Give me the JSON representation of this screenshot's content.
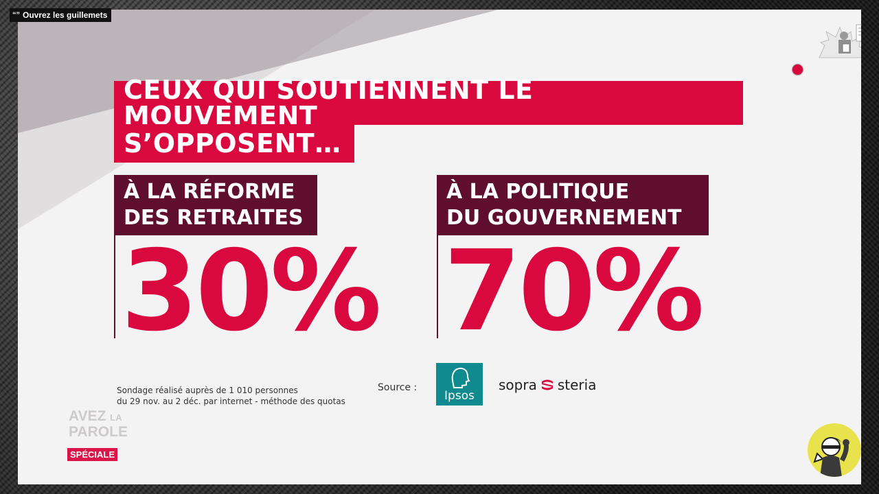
{
  "overlay": {
    "quote_label": "Ouvrez les guillemets",
    "quote_mark": "“”"
  },
  "headline": {
    "line1": "CEUX QUI SOUTIENNENT LE MOUVEMENT",
    "line2": "S’OPPOSENT…"
  },
  "stats": [
    {
      "label_line1": "À LA RÉFORME",
      "label_line2": "DES RETRAITES",
      "value": "30%"
    },
    {
      "label_line1": "À LA POLITIQUE",
      "label_line2": "DU GOUVERNEMENT",
      "value": "70%"
    }
  ],
  "footnote": {
    "line1": "Sondage réalisé auprès de 1 010 personnes",
    "line2": "du 29 nov. au 2 déc. par internet - méthode des quotas"
  },
  "source": {
    "label": "Source :",
    "ipsos": "Ipsos",
    "sopra_left": "sopra",
    "sopra_right": "steria"
  },
  "show": {
    "line1": "AVEZ",
    "line1_small": "LA",
    "line2": "PAROLE",
    "tag": "SPÉCIALE"
  },
  "colors": {
    "accent": "#d9093f",
    "dark_accent": "#5f0e2d",
    "ipsos": "#0f8a8f",
    "badge": "#e8e24c"
  },
  "icons": [
    "quote-icon",
    "newspaper-vendor-icon",
    "live-dot-icon",
    "ipsos-head-icon",
    "sopra-steria-mark-icon",
    "character-badge-icon"
  ]
}
